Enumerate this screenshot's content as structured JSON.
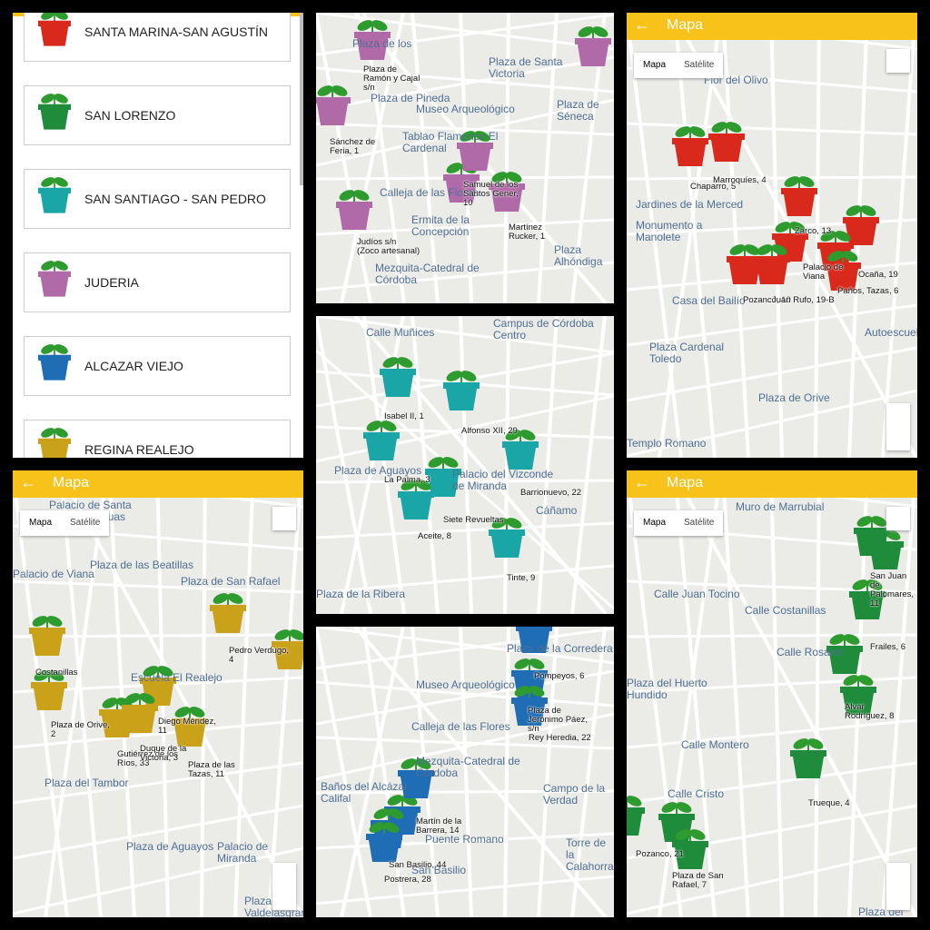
{
  "list": {
    "items": [
      {
        "name": "SANTA MARINA-SAN AGUSTÍN",
        "color": "#d9291c"
      },
      {
        "name": "SAN LORENZO",
        "color": "#1e8c3a"
      },
      {
        "name": "SAN SANTIAGO - SAN PEDRO",
        "color": "#1aa6a6"
      },
      {
        "name": "JUDERIA",
        "color": "#b06aa8"
      },
      {
        "name": "ALCAZAR VIEJO",
        "color": "#1f6db5"
      },
      {
        "name": "REGINA REALEJO",
        "color": "#c9a21a"
      }
    ]
  },
  "maps": [
    {
      "color": "#b06aa8",
      "places": [
        "Plaza de los",
        "Plaza de Santa Victoria",
        "Plaza de Pineda",
        "Museo Arqueológico",
        "Tablao Flamenco El Cardenal",
        "Calleja de las Flores",
        "Ermita de la Concepción",
        "Mezquita-Catedral de Córdoba",
        "Plaza de Séneca",
        "Plaza Alhóndiga",
        "Capilla Mudéjar de San Bartolomé"
      ],
      "markers": [
        "Plaza de Ramón y Cajal s/n",
        "Sánchez de Feria, 1",
        "Samuel de los Santos Gener, 10",
        "Martínez Rucker, 1",
        "Judíos s/n (Zoco artesanal)"
      ]
    },
    {
      "color": "#d9291c",
      "header": "Mapa",
      "map_types": [
        "Mapa",
        "Satélite"
      ],
      "places": [
        "Flor del Olivo",
        "Jardines de la Merced",
        "Monumento a Manolete",
        "Casa del Bailío",
        "Plaza Cardenal Toledo",
        "Plaza de Orive",
        "Templo Romano",
        "Autoescuela"
      ],
      "markers": [
        "Chaparro, 5",
        "Marroquíes, 4",
        "Zarco, 13",
        "Ocaña, 19",
        "Palacio de Viana",
        "Pozanco, 10",
        "Juan Rufo, 19-B",
        "Paños, Tazas, 6"
      ]
    },
    {
      "color": "#1aa6a6",
      "places": [
        "Calle Muñices",
        "Campus de Córdoba Centro",
        "Plaza de Aguayos",
        "Palacio del Vizconde de Miranda",
        "Plaza de la Ribera",
        "Cáñamo"
      ],
      "markers": [
        "Isabel II, 1",
        "Alfonso XII, 29",
        "La Palma, 3",
        "Barrionuevo, 22",
        "Siete Revueltas",
        "Aceite, 8",
        "Tinte, 9"
      ]
    },
    {
      "color": "#c9a21a",
      "header": "Mapa",
      "map_types": [
        "Mapa",
        "Satélite"
      ],
      "places": [
        "Palacio de Santa María de Aguas Santas",
        "Plaza de las Beatillas",
        "Plaza de San Rafael",
        "Palacio de Viana",
        "Escuela El Realejo",
        "Plaza del Tambor",
        "Plaza de Aguayos",
        "Palacio de Miranda",
        "Plaza Valdelasgranadas"
      ],
      "markers": [
        "Pedro Verdugo, 4",
        "Plaza de Orive, 2",
        "Diego Méndez, 11",
        "Gutiérrez de los Ríos, 33",
        "Duque de la Victoria, 3",
        "Plaza de las Tazas, 11",
        "Costanillas"
      ]
    },
    {
      "color": "#1f6db5",
      "places": [
        "Plaza de la Corredera",
        "Museo Arqueológico",
        "Calleja de las Flores",
        "Mezquita-Catedral de Córdoba",
        "Baños del Alcázar Califal",
        "Puente Romano",
        "Torre de la Calahorra",
        "Campo de la Verdad",
        "San Basilio"
      ],
      "markers": [
        "Pompeyos, 6",
        "Plaza de Jerónimo Páez, s/n",
        "Rey Heredia, 22",
        "Martín de la Barrera, 14",
        "San Basilio, 44",
        "Postrera, 28"
      ]
    },
    {
      "color": "#1e8c3a",
      "header": "Mapa",
      "map_types": [
        "Mapa",
        "Satélite"
      ],
      "places": [
        "Muro de Marrubial",
        "Calle Juan Tocino",
        "Calle Costanillas",
        "Calle Rosales",
        "Plaza del Huerto Hundido",
        "Calle Montero",
        "Calle Cristo",
        "Plaza del"
      ],
      "markers": [
        "San Juan de Palomares, 11",
        "Frailes, 6",
        "Alvar Rodríguez, 8",
        "Trueque, 4",
        "Pozanco, 21",
        "Plaza de San Rafael, 7"
      ]
    }
  ]
}
